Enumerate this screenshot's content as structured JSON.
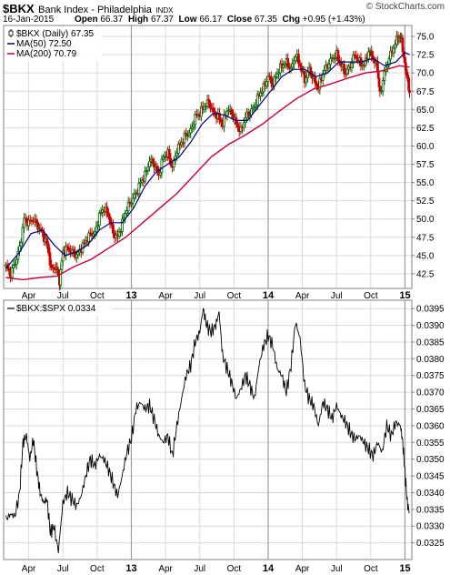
{
  "header": {
    "symbol": "$BKX",
    "name": "Bank Index - Philadelphia",
    "exchange": "INDX",
    "copyright": "© StockCharts.com",
    "date": "16-Jan-2015",
    "open_label": "Open",
    "open_value": "66.37",
    "high_label": "High",
    "high_value": "67.37",
    "low_label": "Low",
    "low_value": "66.17",
    "close_label": "Close",
    "close_value": "67.35",
    "chg_label": "Chg",
    "chg_value": "+0.95 (+1.43%)"
  },
  "colors": {
    "up": "#006400",
    "down": "#cc0000",
    "ma50": "#000080",
    "ma200": "#cc0033",
    "ratio": "#000000",
    "grid": "#d9d9d9",
    "frame": "#808080",
    "year_tick": "#000000"
  },
  "chart_data": [
    {
      "type": "candlestick",
      "legend": [
        {
          "label": "$BKX (Daily) 67.35",
          "icon": "candle-icon"
        },
        {
          "label": "MA(50) 72.50",
          "color": "#000080"
        },
        {
          "label": "MA(200) 70.79",
          "color": "#cc0033"
        }
      ],
      "x_tick_labels": [
        {
          "label": "Apr",
          "t": 2.0,
          "year": false
        },
        {
          "label": "Jul",
          "t": 5.0,
          "year": false
        },
        {
          "label": "Oct",
          "t": 8.0,
          "year": false
        },
        {
          "label": "13",
          "t": 11.0,
          "year": true
        },
        {
          "label": "Apr",
          "t": 14.0,
          "year": false
        },
        {
          "label": "Jul",
          "t": 17.0,
          "year": false
        },
        {
          "label": "Oct",
          "t": 20.0,
          "year": false
        },
        {
          "label": "14",
          "t": 23.0,
          "year": true
        },
        {
          "label": "Apr",
          "t": 26.0,
          "year": false
        },
        {
          "label": "Jul",
          "t": 29.0,
          "year": false
        },
        {
          "label": "Oct",
          "t": 32.0,
          "year": false
        },
        {
          "label": "15",
          "t": 35.0,
          "year": true
        }
      ],
      "x_range": [
        -0.2,
        35.6
      ],
      "y_ticks": [
        "42.5",
        "45.0",
        "47.5",
        "50.0",
        "52.5",
        "55.0",
        "57.5",
        "60.0",
        "62.5",
        "65.0",
        "67.5",
        "70.0",
        "72.5",
        "75.0"
      ],
      "y_range": [
        40.5,
        76.5
      ],
      "price_points": [
        [
          0,
          43.5
        ],
        [
          0.4,
          42.5
        ],
        [
          0.8,
          44.0
        ],
        [
          1.2,
          46.0
        ],
        [
          1.6,
          50.0
        ],
        [
          2.0,
          49.5
        ],
        [
          2.4,
          50.0
        ],
        [
          2.8,
          49.0
        ],
        [
          3.2,
          48.0
        ],
        [
          3.6,
          46.5
        ],
        [
          4.0,
          43.0
        ],
        [
          4.4,
          43.5
        ],
        [
          4.7,
          41.5
        ],
        [
          5.0,
          45.5
        ],
        [
          5.4,
          46.0
        ],
        [
          5.8,
          45.5
        ],
        [
          6.2,
          45.0
        ],
        [
          6.6,
          46.0
        ],
        [
          7.0,
          47.0
        ],
        [
          7.4,
          48.0
        ],
        [
          7.8,
          48.0
        ],
        [
          8.2,
          50.5
        ],
        [
          8.6,
          51.5
        ],
        [
          9.0,
          50.5
        ],
        [
          9.4,
          48.0
        ],
        [
          9.8,
          47.5
        ],
        [
          10.2,
          49.5
        ],
        [
          10.6,
          51.5
        ],
        [
          11.0,
          52.5
        ],
        [
          11.4,
          53.5
        ],
        [
          11.8,
          55.0
        ],
        [
          12.2,
          56.0
        ],
        [
          12.6,
          58.0
        ],
        [
          13.0,
          57.5
        ],
        [
          13.4,
          56.0
        ],
        [
          13.8,
          58.5
        ],
        [
          14.2,
          59.0
        ],
        [
          14.6,
          57.0
        ],
        [
          15.0,
          59.5
        ],
        [
          15.4,
          60.5
        ],
        [
          15.8,
          61.5
        ],
        [
          16.2,
          62.0
        ],
        [
          16.6,
          64.0
        ],
        [
          17.0,
          64.5
        ],
        [
          17.4,
          65.5
        ],
        [
          17.8,
          66.0
        ],
        [
          18.2,
          64.5
        ],
        [
          18.6,
          64.0
        ],
        [
          19.0,
          63.0
        ],
        [
          19.4,
          65.0
        ],
        [
          19.8,
          64.5
        ],
        [
          20.2,
          63.0
        ],
        [
          20.6,
          62.0
        ],
        [
          21.0,
          64.0
        ],
        [
          21.4,
          64.5
        ],
        [
          21.8,
          65.5
        ],
        [
          22.2,
          67.0
        ],
        [
          22.6,
          68.0
        ],
        [
          23.0,
          69.5
        ],
        [
          23.4,
          68.5
        ],
        [
          23.8,
          70.0
        ],
        [
          24.2,
          71.0
        ],
        [
          24.6,
          71.5
        ],
        [
          25.0,
          70.5
        ],
        [
          25.4,
          72.5
        ],
        [
          25.8,
          71.0
        ],
        [
          26.2,
          69.0
        ],
        [
          26.6,
          70.5
        ],
        [
          27.0,
          69.0
        ],
        [
          27.4,
          68.0
        ],
        [
          27.8,
          70.0
        ],
        [
          28.2,
          71.0
        ],
        [
          28.6,
          72.0
        ],
        [
          29.0,
          72.5
        ],
        [
          29.4,
          71.0
        ],
        [
          29.8,
          70.0
        ],
        [
          30.2,
          71.0
        ],
        [
          30.6,
          72.5
        ],
        [
          31.0,
          71.5
        ],
        [
          31.4,
          71.0
        ],
        [
          31.8,
          73.0
        ],
        [
          32.2,
          72.0
        ],
        [
          32.6,
          70.5
        ],
        [
          32.8,
          67.0
        ],
        [
          33.2,
          70.0
        ],
        [
          33.6,
          72.0
        ],
        [
          34.0,
          73.5
        ],
        [
          34.4,
          75.0
        ],
        [
          34.7,
          74.5
        ],
        [
          35.0,
          71.0
        ],
        [
          35.2,
          69.5
        ],
        [
          35.4,
          67.35
        ]
      ],
      "ma50_points": [
        [
          0,
          43.2
        ],
        [
          1.2,
          45.5
        ],
        [
          2.2,
          48.0
        ],
        [
          3.2,
          48.5
        ],
        [
          4.2,
          46.5
        ],
        [
          5.2,
          45.0
        ],
        [
          6.2,
          45.5
        ],
        [
          7.2,
          46.5
        ],
        [
          8.2,
          48.5
        ],
        [
          9.2,
          49.5
        ],
        [
          10.2,
          49.5
        ],
        [
          11.2,
          51.5
        ],
        [
          12.2,
          54.5
        ],
        [
          13.2,
          56.5
        ],
        [
          14.2,
          57.5
        ],
        [
          15.2,
          58.5
        ],
        [
          16.2,
          60.5
        ],
        [
          17.2,
          63.0
        ],
        [
          18.2,
          64.5
        ],
        [
          19.2,
          64.2
        ],
        [
          20.2,
          63.5
        ],
        [
          21.2,
          63.5
        ],
        [
          22.2,
          65.5
        ],
        [
          23.2,
          67.5
        ],
        [
          24.2,
          69.5
        ],
        [
          25.2,
          70.5
        ],
        [
          26.2,
          70.5
        ],
        [
          27.2,
          69.5
        ],
        [
          28.2,
          70.0
        ],
        [
          29.2,
          71.5
        ],
        [
          30.2,
          71.5
        ],
        [
          31.2,
          71.5
        ],
        [
          32.2,
          72.0
        ],
        [
          33.2,
          71.0
        ],
        [
          34.2,
          71.5
        ],
        [
          35.0,
          72.8
        ],
        [
          35.4,
          72.5
        ]
      ],
      "ma200_points": [
        [
          0,
          42.0
        ],
        [
          1.5,
          41.7
        ],
        [
          3.0,
          42.0
        ],
        [
          4.5,
          42.2
        ],
        [
          6.0,
          43.5
        ],
        [
          7.5,
          44.5
        ],
        [
          9.0,
          46.0
        ],
        [
          10.5,
          47.5
        ],
        [
          12.0,
          49.5
        ],
        [
          13.5,
          51.5
        ],
        [
          15.0,
          53.5
        ],
        [
          16.5,
          56.0
        ],
        [
          18.0,
          58.5
        ],
        [
          19.5,
          60.2
        ],
        [
          21.0,
          61.5
        ],
        [
          22.5,
          63.0
        ],
        [
          24.0,
          64.8
        ],
        [
          25.5,
          66.5
        ],
        [
          27.0,
          67.8
        ],
        [
          28.5,
          68.5
        ],
        [
          30.0,
          69.3
        ],
        [
          31.5,
          70.0
        ],
        [
          33.0,
          70.3
        ],
        [
          34.5,
          71.0
        ],
        [
          35.4,
          70.79
        ]
      ]
    },
    {
      "type": "line",
      "legend": [
        {
          "label": "$BKX:$SPX 0.0334",
          "icon": "line-icon"
        }
      ],
      "x_tick_labels": [
        {
          "label": "Apr",
          "t": 2.0,
          "year": false
        },
        {
          "label": "Jul",
          "t": 5.0,
          "year": false
        },
        {
          "label": "Oct",
          "t": 8.0,
          "year": false
        },
        {
          "label": "13",
          "t": 11.0,
          "year": true
        },
        {
          "label": "Apr",
          "t": 14.0,
          "year": false
        },
        {
          "label": "Jul",
          "t": 17.0,
          "year": false
        },
        {
          "label": "Oct",
          "t": 20.0,
          "year": false
        },
        {
          "label": "14",
          "t": 23.0,
          "year": true
        },
        {
          "label": "Apr",
          "t": 26.0,
          "year": false
        },
        {
          "label": "Jul",
          "t": 29.0,
          "year": false
        },
        {
          "label": "Oct",
          "t": 32.0,
          "year": false
        },
        {
          "label": "15",
          "t": 35.0,
          "year": true
        }
      ],
      "x_range": [
        -0.2,
        35.6
      ],
      "y_ticks": [
        "0.0325",
        "0.0330",
        "0.0335",
        "0.0340",
        "0.0345",
        "0.0350",
        "0.0355",
        "0.0360",
        "0.0365",
        "0.0370",
        "0.0375",
        "0.0380",
        "0.0385",
        "0.0390",
        "0.0395"
      ],
      "y_range": [
        0.032,
        0.03975
      ],
      "ratio_points": [
        [
          0,
          0.0332
        ],
        [
          0.4,
          0.03335
        ],
        [
          0.8,
          0.0333
        ],
        [
          1.2,
          0.034
        ],
        [
          1.5,
          0.0355
        ],
        [
          1.8,
          0.0357
        ],
        [
          2.1,
          0.035
        ],
        [
          2.4,
          0.0356
        ],
        [
          2.7,
          0.0347
        ],
        [
          3.0,
          0.034
        ],
        [
          3.3,
          0.0337
        ],
        [
          3.6,
          0.0338
        ],
        [
          3.9,
          0.0328
        ],
        [
          4.2,
          0.033
        ],
        [
          4.6,
          0.03225
        ],
        [
          5.0,
          0.0337
        ],
        [
          5.4,
          0.034
        ],
        [
          5.8,
          0.0338
        ],
        [
          6.2,
          0.0336
        ],
        [
          6.6,
          0.0339
        ],
        [
          7.0,
          0.0345
        ],
        [
          7.4,
          0.035
        ],
        [
          7.8,
          0.0348
        ],
        [
          8.2,
          0.0351
        ],
        [
          8.6,
          0.035
        ],
        [
          9.0,
          0.0347
        ],
        [
          9.4,
          0.0343
        ],
        [
          9.8,
          0.0339
        ],
        [
          10.2,
          0.0345
        ],
        [
          10.6,
          0.0352
        ],
        [
          11.0,
          0.0356
        ],
        [
          11.4,
          0.0365
        ],
        [
          11.8,
          0.0367
        ],
        [
          12.2,
          0.0365
        ],
        [
          12.6,
          0.0366
        ],
        [
          13.0,
          0.0362
        ],
        [
          13.4,
          0.0357
        ],
        [
          13.8,
          0.0355
        ],
        [
          14.2,
          0.0357
        ],
        [
          14.6,
          0.0351
        ],
        [
          15.0,
          0.036
        ],
        [
          15.4,
          0.0368
        ],
        [
          15.8,
          0.0375
        ],
        [
          16.2,
          0.0378
        ],
        [
          16.6,
          0.0385
        ],
        [
          17.0,
          0.0388
        ],
        [
          17.3,
          0.0395
        ],
        [
          17.6,
          0.039
        ],
        [
          18.0,
          0.0388
        ],
        [
          18.4,
          0.039
        ],
        [
          18.7,
          0.0394
        ],
        [
          19.0,
          0.0381
        ],
        [
          19.4,
          0.0377
        ],
        [
          19.8,
          0.0373
        ],
        [
          20.2,
          0.0368
        ],
        [
          20.6,
          0.0371
        ],
        [
          21.0,
          0.0375
        ],
        [
          21.4,
          0.0372
        ],
        [
          21.8,
          0.0368
        ],
        [
          22.2,
          0.0378
        ],
        [
          22.6,
          0.0384
        ],
        [
          23.0,
          0.0387
        ],
        [
          23.4,
          0.0384
        ],
        [
          23.8,
          0.0377
        ],
        [
          24.2,
          0.0375
        ],
        [
          24.6,
          0.037
        ],
        [
          25.0,
          0.0378
        ],
        [
          25.4,
          0.0391
        ],
        [
          25.8,
          0.0386
        ],
        [
          26.2,
          0.0372
        ],
        [
          26.6,
          0.0368
        ],
        [
          27.0,
          0.0366
        ],
        [
          27.4,
          0.036
        ],
        [
          27.8,
          0.0367
        ],
        [
          28.2,
          0.0365
        ],
        [
          28.6,
          0.0362
        ],
        [
          29.0,
          0.0366
        ],
        [
          29.4,
          0.0363
        ],
        [
          29.8,
          0.0361
        ],
        [
          30.2,
          0.0358
        ],
        [
          30.6,
          0.0356
        ],
        [
          31.0,
          0.0357
        ],
        [
          31.4,
          0.0355
        ],
        [
          31.8,
          0.0353
        ],
        [
          32.2,
          0.0351
        ],
        [
          32.6,
          0.0355
        ],
        [
          33.0,
          0.0352
        ],
        [
          33.4,
          0.036
        ],
        [
          33.8,
          0.0357
        ],
        [
          34.2,
          0.0361
        ],
        [
          34.6,
          0.036
        ],
        [
          34.8,
          0.0355
        ],
        [
          35.0,
          0.0346
        ],
        [
          35.2,
          0.0337
        ],
        [
          35.4,
          0.0334
        ]
      ]
    }
  ]
}
